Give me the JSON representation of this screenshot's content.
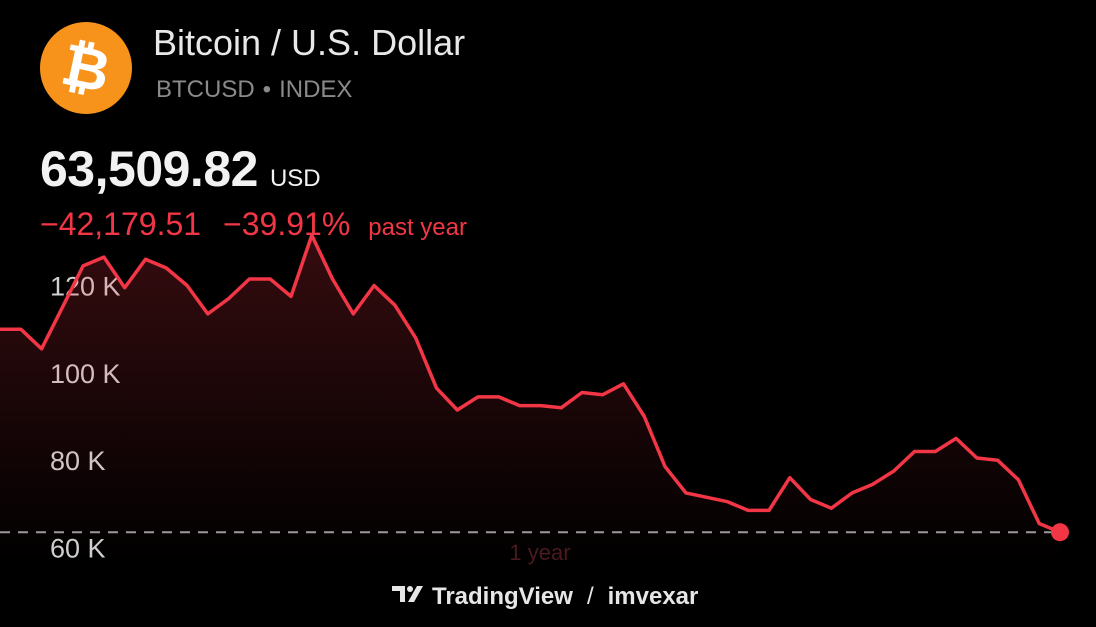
{
  "header": {
    "title": "Bitcoin / U.S. Dollar",
    "symbol": "BTCUSD",
    "separator": "•",
    "exchange": "INDEX",
    "logo_icon": "bitcoin-logo-icon"
  },
  "quote": {
    "price": "63,509.82",
    "currency": "USD",
    "change_abs": "−42,179.51",
    "change_pct": "−39.91%",
    "period": "past year"
  },
  "colors": {
    "background": "#000000",
    "line": "#f23645",
    "logo": "#f7931a"
  },
  "chart_data": {
    "type": "area",
    "period_label": "1 year",
    "y_ticks": [
      "120 K",
      "100 K",
      "80 K",
      "60 K"
    ],
    "y_tick_values": [
      120000,
      100000,
      80000,
      60000
    ],
    "ylim": [
      56000,
      135000
    ],
    "current_value": 63509.82,
    "reference_line": "dashed-at-current-value",
    "values": [
      110000,
      110000,
      105500,
      115000,
      124500,
      126500,
      119500,
      126000,
      124000,
      120000,
      113500,
      117000,
      121500,
      121500,
      117500,
      131500,
      121500,
      113500,
      120000,
      115500,
      108000,
      96500,
      91500,
      94500,
      94500,
      92500,
      92500,
      92000,
      95500,
      95000,
      97500,
      90000,
      78500,
      72500,
      71500,
      70500,
      68500,
      68500,
      76000,
      71000,
      69000,
      72500,
      74500,
      77500,
      82000,
      82000,
      85000,
      80500,
      80000,
      75500,
      65500,
      63509.82
    ]
  },
  "footer": {
    "brand": "TradingView",
    "separator": "/",
    "user": "imvexar",
    "brand_icon": "tradingview-logo-icon"
  }
}
